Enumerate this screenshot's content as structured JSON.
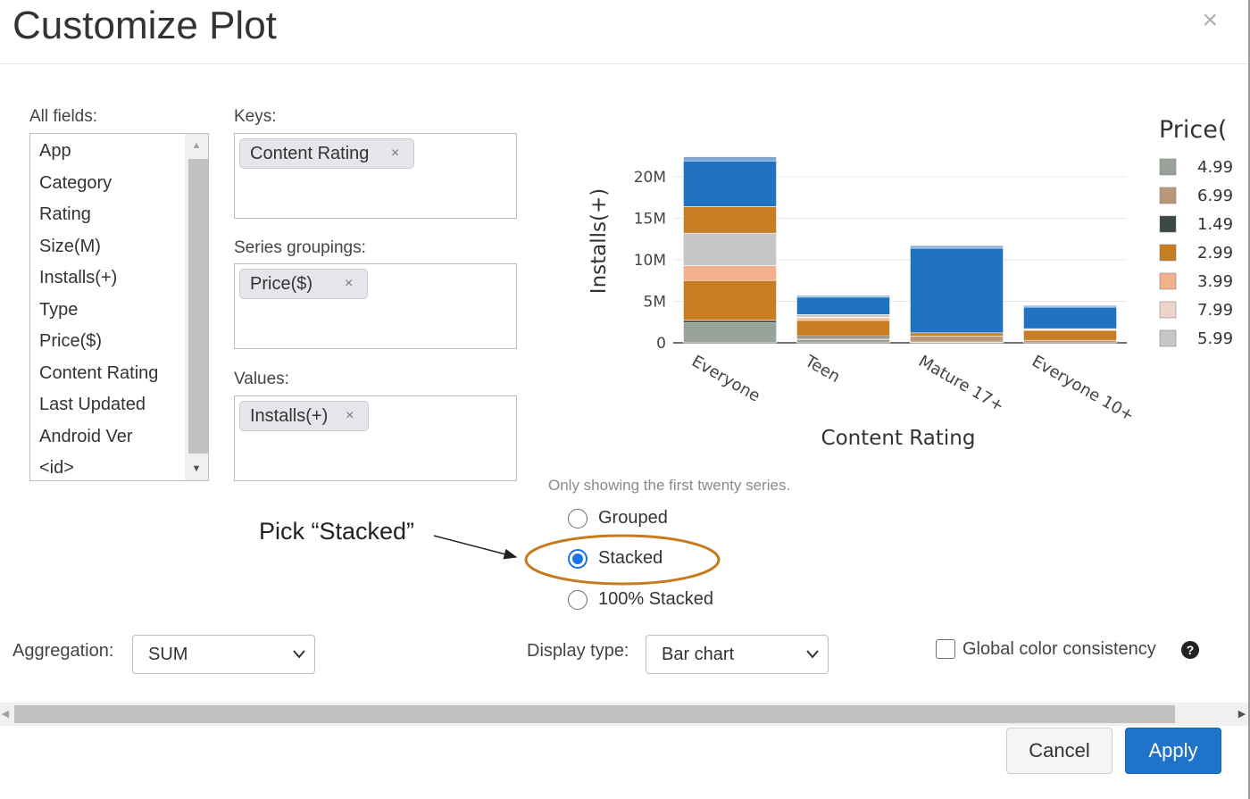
{
  "dialog": {
    "title": "Customize Plot",
    "close_label": "×"
  },
  "fields": {
    "label": "All fields:",
    "items": [
      "App",
      "Category",
      "Rating",
      "Size(M)",
      "Installs(+)",
      "Type",
      "Price($)",
      "Content Rating",
      "Last Updated",
      "Android Ver",
      "<id>"
    ]
  },
  "keys": {
    "label": "Keys:",
    "chip": "Content Rating",
    "remove": "×"
  },
  "series_groupings": {
    "label": "Series groupings:",
    "chip": "Price($)",
    "remove": "×"
  },
  "values": {
    "label": "Values:",
    "chip": "Installs(+)",
    "remove": "×"
  },
  "note": "Only showing the first twenty series.",
  "bar_type": {
    "options": [
      "Grouped",
      "Stacked",
      "100% Stacked"
    ],
    "selected": "Stacked"
  },
  "annotation": {
    "text": "Pick “Stacked”",
    "color": "#c67c1e"
  },
  "aggregation": {
    "label": "Aggregation:",
    "value": "SUM"
  },
  "display_type": {
    "label": "Display type:",
    "value": "Bar chart"
  },
  "global_color": {
    "label": "Global color consistency",
    "checked": false,
    "help_icon": "question-circle-icon"
  },
  "buttons": {
    "cancel": "Cancel",
    "apply": "Apply"
  },
  "chart_data": {
    "type": "bar",
    "stacked": true,
    "title": "",
    "xlabel": "Content Rating",
    "ylabel": "Installs(+)",
    "ylim": [
      0,
      23000000
    ],
    "yticks": [
      0,
      5000000,
      10000000,
      15000000,
      20000000
    ],
    "ytick_labels": [
      "0",
      "5M",
      "10M",
      "15M",
      "20M"
    ],
    "categories": [
      "Everyone",
      "Teen",
      "Mature 17+",
      "Everyone 10+"
    ],
    "legend": {
      "title": "Price(",
      "position": "right"
    },
    "series": [
      {
        "name": "4.99",
        "color": "#9aa39a",
        "values": [
          2400000,
          400000,
          100000,
          0
        ]
      },
      {
        "name": "6.99",
        "color": "#b9987a",
        "values": [
          0,
          200000,
          700000,
          300000
        ]
      },
      {
        "name": "1.49",
        "color": "#3d4a44",
        "values": [
          300000,
          200000,
          0,
          0
        ]
      },
      {
        "name": "2.99",
        "color": "#c77d22",
        "values": [
          4800000,
          1900000,
          400000,
          1200000
        ]
      },
      {
        "name": "3.99",
        "color": "#f3b08c",
        "values": [
          1800000,
          300000,
          0,
          0
        ]
      },
      {
        "name": "7.99",
        "color": "#ecd4cb",
        "values": [
          0,
          100000,
          0,
          100000
        ]
      },
      {
        "name": "5.99",
        "color": "#c6c6c6",
        "values": [
          3900000,
          300000,
          0,
          100000
        ]
      },
      {
        "name": "",
        "color": "#c77d22",
        "values": [
          3200000,
          0,
          0,
          0
        ]
      },
      {
        "name": "",
        "color": "#1f73c0",
        "values": [
          5500000,
          2100000,
          10200000,
          2600000
        ]
      },
      {
        "name": "",
        "color": "#7ea6cc",
        "values": [
          500000,
          200000,
          300000,
          200000
        ]
      }
    ],
    "legend_entries": [
      "4.99",
      "6.99",
      "1.49",
      "2.99",
      "3.99",
      "7.99",
      "5.99"
    ]
  }
}
